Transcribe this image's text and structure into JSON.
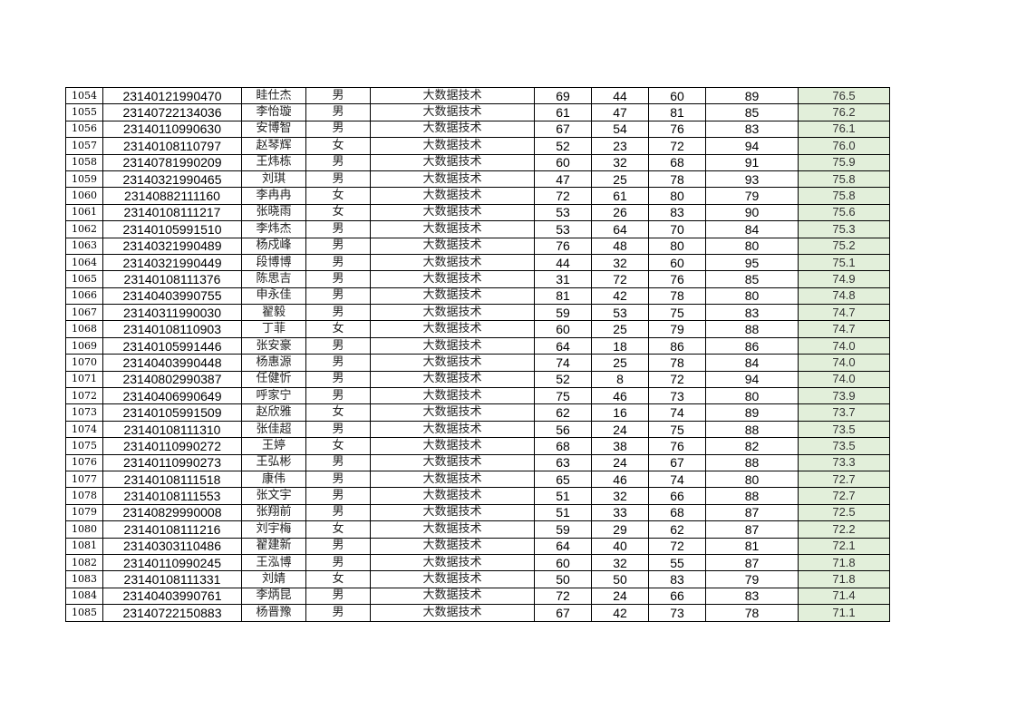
{
  "colors": {
    "total_fill": "#e2efda"
  },
  "rows": [
    [
      "1054",
      "23140121990470",
      "眭仕杰",
      "男",
      "大数据技术",
      "69",
      "44",
      "60",
      "89",
      "76.5"
    ],
    [
      "1055",
      "23140722134036",
      "李怡璇",
      "男",
      "大数据技术",
      "61",
      "47",
      "81",
      "85",
      "76.2"
    ],
    [
      "1056",
      "23140110990630",
      "安博智",
      "男",
      "大数据技术",
      "67",
      "54",
      "76",
      "83",
      "76.1"
    ],
    [
      "1057",
      "23140108110797",
      "赵琴辉",
      "女",
      "大数据技术",
      "52",
      "23",
      "72",
      "94",
      "76.0"
    ],
    [
      "1058",
      "23140781990209",
      "王炜栋",
      "男",
      "大数据技术",
      "60",
      "32",
      "68",
      "91",
      "75.9"
    ],
    [
      "1059",
      "23140321990465",
      "刘琪",
      "男",
      "大数据技术",
      "47",
      "25",
      "78",
      "93",
      "75.8"
    ],
    [
      "1060",
      "23140882111160",
      "李冉冉",
      "女",
      "大数据技术",
      "72",
      "61",
      "80",
      "79",
      "75.8"
    ],
    [
      "1061",
      "23140108111217",
      "张晓雨",
      "女",
      "大数据技术",
      "53",
      "26",
      "83",
      "90",
      "75.6"
    ],
    [
      "1062",
      "23140105991510",
      "李炜杰",
      "男",
      "大数据技术",
      "53",
      "64",
      "70",
      "84",
      "75.3"
    ],
    [
      "1063",
      "23140321990489",
      "杨戍峰",
      "男",
      "大数据技术",
      "76",
      "48",
      "80",
      "80",
      "75.2"
    ],
    [
      "1064",
      "23140321990449",
      "段博博",
      "男",
      "大数据技术",
      "44",
      "32",
      "60",
      "95",
      "75.1"
    ],
    [
      "1065",
      "23140108111376",
      "陈思吉",
      "男",
      "大数据技术",
      "31",
      "72",
      "76",
      "85",
      "74.9"
    ],
    [
      "1066",
      "23140403990755",
      "申永佳",
      "男",
      "大数据技术",
      "81",
      "42",
      "78",
      "80",
      "74.8"
    ],
    [
      "1067",
      "23140311990030",
      "翟毅",
      "男",
      "大数据技术",
      "59",
      "53",
      "75",
      "83",
      "74.7"
    ],
    [
      "1068",
      "23140108110903",
      "丁菲",
      "女",
      "大数据技术",
      "60",
      "25",
      "79",
      "88",
      "74.7"
    ],
    [
      "1069",
      "23140105991446",
      "张安豪",
      "男",
      "大数据技术",
      "64",
      "18",
      "86",
      "86",
      "74.0"
    ],
    [
      "1070",
      "23140403990448",
      "杨惠源",
      "男",
      "大数据技术",
      "74",
      "25",
      "78",
      "84",
      "74.0"
    ],
    [
      "1071",
      "23140802990387",
      "任健忻",
      "男",
      "大数据技术",
      "52",
      "8",
      "72",
      "94",
      "74.0"
    ],
    [
      "1072",
      "23140406990649",
      "呼家宁",
      "男",
      "大数据技术",
      "75",
      "46",
      "73",
      "80",
      "73.9"
    ],
    [
      "1073",
      "23140105991509",
      "赵欣雅",
      "女",
      "大数据技术",
      "62",
      "16",
      "74",
      "89",
      "73.7"
    ],
    [
      "1074",
      "23140108111310",
      "张佳超",
      "男",
      "大数据技术",
      "56",
      "24",
      "75",
      "88",
      "73.5"
    ],
    [
      "1075",
      "23140110990272",
      "王婷",
      "女",
      "大数据技术",
      "68",
      "38",
      "76",
      "82",
      "73.5"
    ],
    [
      "1076",
      "23140110990273",
      "王弘彬",
      "男",
      "大数据技术",
      "63",
      "24",
      "67",
      "88",
      "73.3"
    ],
    [
      "1077",
      "23140108111518",
      "康伟",
      "男",
      "大数据技术",
      "65",
      "46",
      "74",
      "80",
      "72.7"
    ],
    [
      "1078",
      "23140108111553",
      "张文宇",
      "男",
      "大数据技术",
      "51",
      "32",
      "66",
      "88",
      "72.7"
    ],
    [
      "1079",
      "23140829990008",
      "张翔前",
      "男",
      "大数据技术",
      "51",
      "33",
      "68",
      "87",
      "72.5"
    ],
    [
      "1080",
      "23140108111216",
      "刘宇梅",
      "女",
      "大数据技术",
      "59",
      "29",
      "62",
      "87",
      "72.2"
    ],
    [
      "1081",
      "23140303110486",
      "翟建新",
      "男",
      "大数据技术",
      "64",
      "40",
      "72",
      "81",
      "72.1"
    ],
    [
      "1082",
      "23140110990245",
      "王泓博",
      "男",
      "大数据技术",
      "60",
      "32",
      "55",
      "87",
      "71.8"
    ],
    [
      "1083",
      "23140108111331",
      "刘婧",
      "女",
      "大数据技术",
      "50",
      "50",
      "83",
      "79",
      "71.8"
    ],
    [
      "1084",
      "23140403990761",
      "李炳昆",
      "男",
      "大数据技术",
      "72",
      "24",
      "66",
      "83",
      "71.4"
    ],
    [
      "1085",
      "23140722150883",
      "杨晋豫",
      "男",
      "大数据技术",
      "67",
      "42",
      "73",
      "78",
      "71.1"
    ]
  ]
}
